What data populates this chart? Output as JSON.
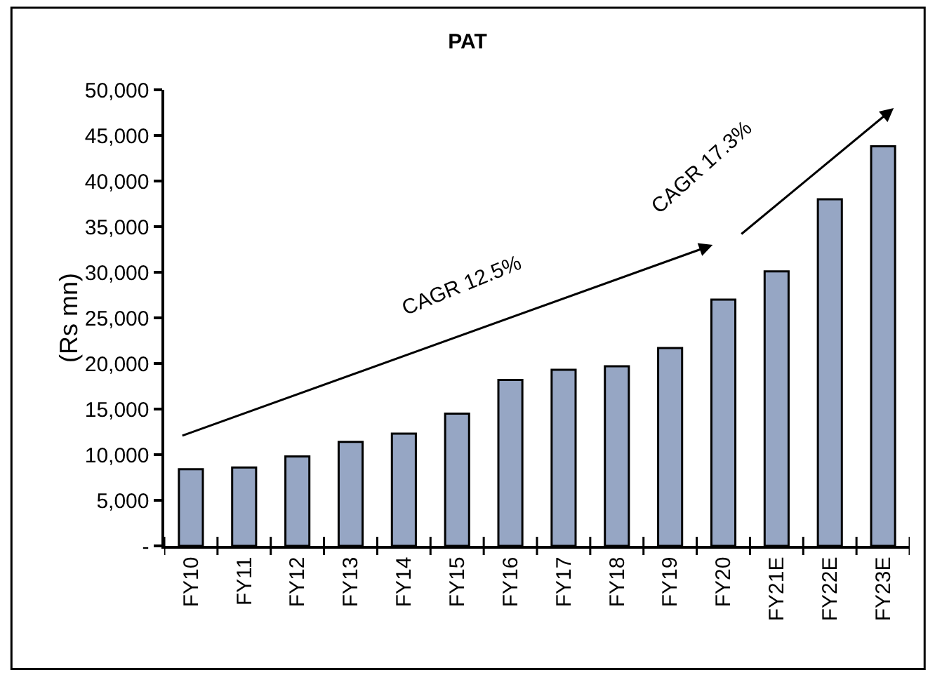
{
  "chart_data": {
    "type": "bar",
    "title": "PAT",
    "ylabel": "(Rs mn)",
    "categories": [
      "FY10",
      "FY11",
      "FY12",
      "FY13",
      "FY14",
      "FY15",
      "FY16",
      "FY17",
      "FY18",
      "FY19",
      "FY20",
      "FY21E",
      "FY22E",
      "FY23E"
    ],
    "values": [
      8400,
      8600,
      9800,
      11400,
      12300,
      14500,
      18200,
      19300,
      19700,
      21700,
      27000,
      30100,
      38000,
      43800
    ],
    "color": "#96a6c4",
    "ylim": [
      0,
      50000
    ],
    "yticks": [
      {
        "value": 0,
        "label": "-"
      },
      {
        "value": 5000,
        "label": "5,000"
      },
      {
        "value": 10000,
        "label": "10,000"
      },
      {
        "value": 15000,
        "label": "15,000"
      },
      {
        "value": 20000,
        "label": "20,000"
      },
      {
        "value": 25000,
        "label": "25,000"
      },
      {
        "value": 30000,
        "label": "30,000"
      },
      {
        "value": 35000,
        "label": "35,000"
      },
      {
        "value": 40000,
        "label": "40,000"
      },
      {
        "value": 45000,
        "label": "45,000"
      },
      {
        "value": 50000,
        "label": "50,000"
      }
    ],
    "annotations": [
      "CAGR 12.5%",
      "CAGR 17.3%"
    ]
  }
}
